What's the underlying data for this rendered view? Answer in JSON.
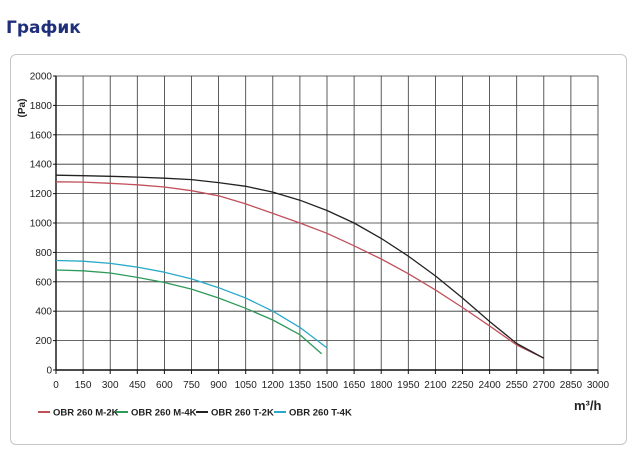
{
  "page": {
    "heading": "График"
  },
  "chart_data": {
    "type": "line",
    "title": "",
    "xlabel": "m³/h",
    "ylabel": "(Pa)",
    "xlim": [
      0,
      3000
    ],
    "ylim": [
      0,
      2000
    ],
    "xticks": [
      "0",
      "150",
      "300",
      "450",
      "600",
      "750",
      "900",
      "1050",
      "1200",
      "1350",
      "1500",
      "1650",
      "1800",
      "1950",
      "2100",
      "2250",
      "2400",
      "2550",
      "2700",
      "2850",
      "3000"
    ],
    "yticks": [
      "0",
      "200",
      "400",
      "600",
      "800",
      "1000",
      "1200",
      "1400",
      "1600",
      "1800",
      "2000"
    ],
    "grid": true,
    "legend_position": "bottom",
    "series": [
      {
        "name": "OBR 260 M-2K",
        "color": "#c0505a",
        "x": [
          0,
          150,
          300,
          450,
          600,
          750,
          900,
          1050,
          1200,
          1350,
          1500,
          1650,
          1800,
          1950,
          2100,
          2250,
          2400,
          2550,
          2700
        ],
        "y": [
          1280,
          1278,
          1270,
          1260,
          1245,
          1220,
          1185,
          1130,
          1065,
          1000,
          930,
          845,
          755,
          655,
          545,
          425,
          300,
          170,
          80
        ]
      },
      {
        "name": "OBR 260 M-4K",
        "color": "#2e9a5a",
        "x": [
          0,
          150,
          300,
          450,
          600,
          750,
          900,
          1050,
          1200,
          1350,
          1470
        ],
        "y": [
          680,
          675,
          660,
          630,
          595,
          550,
          490,
          420,
          340,
          240,
          110
        ]
      },
      {
        "name": "OBR 260 T-2K",
        "color": "#222222",
        "x": [
          0,
          150,
          300,
          450,
          600,
          750,
          900,
          1050,
          1200,
          1350,
          1500,
          1650,
          1800,
          1950,
          2100,
          2250,
          2400,
          2550,
          2700
        ],
        "y": [
          1325,
          1322,
          1318,
          1312,
          1305,
          1295,
          1275,
          1250,
          1210,
          1155,
          1085,
          1000,
          895,
          775,
          640,
          490,
          330,
          180,
          80
        ]
      },
      {
        "name": "OBR 260 T-4K",
        "color": "#2aa9c9",
        "x": [
          0,
          150,
          300,
          450,
          600,
          750,
          900,
          1050,
          1200,
          1350,
          1500
        ],
        "y": [
          745,
          740,
          725,
          700,
          665,
          620,
          560,
          490,
          400,
          290,
          150
        ]
      }
    ]
  }
}
